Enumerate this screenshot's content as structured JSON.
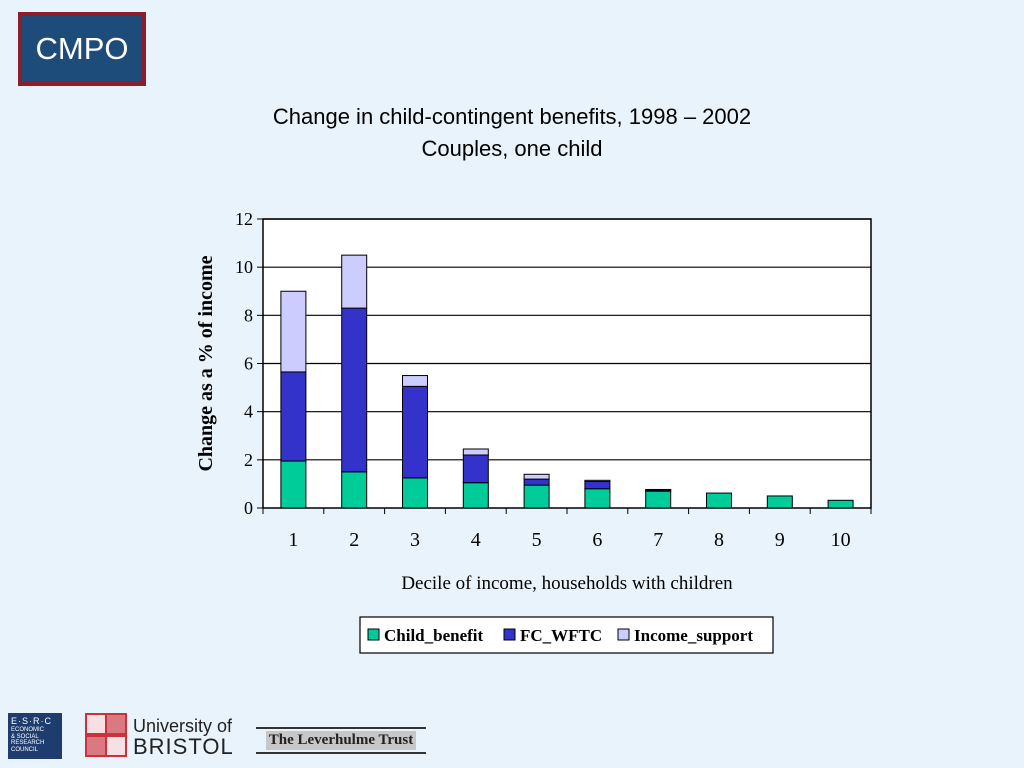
{
  "logo": {
    "text": "CMPO"
  },
  "chart_data": {
    "type": "bar",
    "stacked": true,
    "title": "Change in child-contingent benefits, 1998 – 2002",
    "subtitle": "Couples, one child",
    "xlabel": "Decile of income, households with children",
    "ylabel": "Change as a  % of income",
    "categories": [
      "1",
      "2",
      "3",
      "4",
      "5",
      "6",
      "7",
      "8",
      "9",
      "10"
    ],
    "ylim": [
      0,
      12
    ],
    "yticks": [
      "0",
      "2",
      "4",
      "6",
      "8",
      "10",
      "12"
    ],
    "grid": true,
    "legend": "bottom",
    "series": [
      {
        "name": "Child_benefit",
        "color": "#00cc99",
        "values": [
          1.95,
          1.5,
          1.25,
          1.05,
          0.95,
          0.8,
          0.7,
          0.62,
          0.5,
          0.32
        ]
      },
      {
        "name": "FC_WFTC",
        "color": "#3333cc",
        "values": [
          3.7,
          6.8,
          3.8,
          1.15,
          0.25,
          0.3,
          0.05,
          0,
          0,
          0
        ]
      },
      {
        "name": "Income_support",
        "color": "#ccccff",
        "values": [
          3.35,
          2.2,
          0.45,
          0.25,
          0.2,
          0.05,
          0.02,
          0,
          0,
          0
        ]
      }
    ]
  },
  "footer": {
    "esrc": {
      "top": "E·S·R·C",
      "lines": [
        "ECONOMIC",
        "& SOCIAL",
        "RESEARCH",
        "COUNCIL"
      ]
    },
    "bristol": {
      "line1": "University of",
      "line2": "BRISTOL"
    },
    "trust": "The Leverhulme Trust"
  }
}
